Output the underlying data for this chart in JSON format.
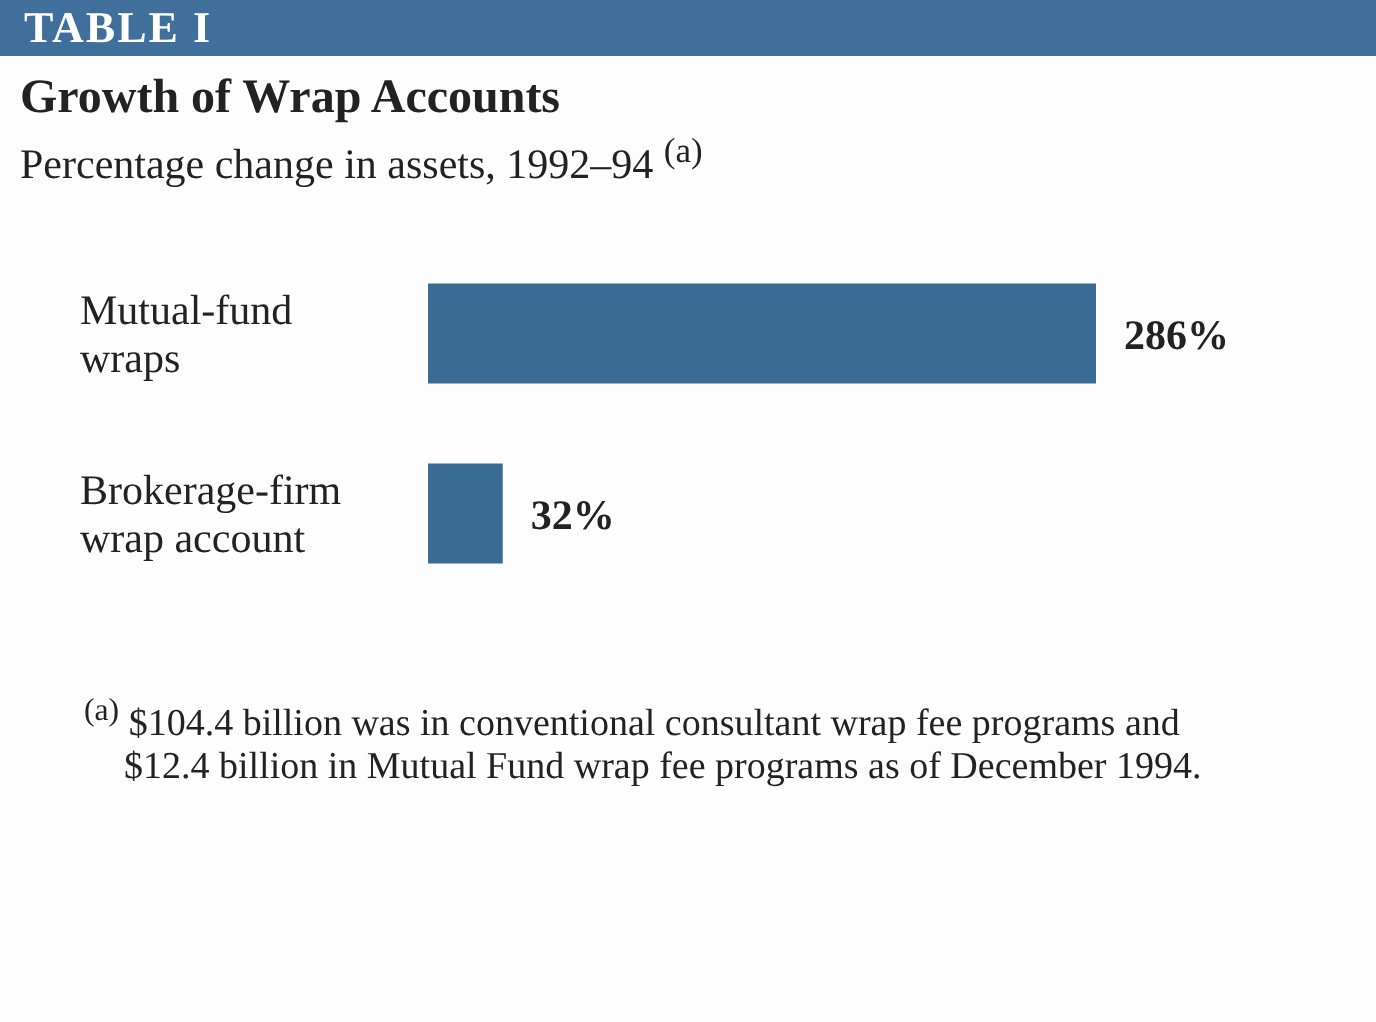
{
  "chart_data": {
    "type": "bar",
    "orientation": "horizontal",
    "title": "Growth of Wrap Accounts",
    "subtitle": "Percentage change in assets, 1992–94 $^{(a)}$",
    "categories": [
      "Mutual-fund wraps",
      "Brokerage-firm wrap account"
    ],
    "values": [
      286,
      32
    ],
    "color": "#3a6b94",
    "value_labels": [
      "286%",
      "32%"
    ],
    "annotations": [
      "TABLE I",
      "$^{(a)}$ $104.4 billion was in conventional consultant wrap fee programs and $12.4 billion in Mutual Fund wrap fee programs as of December 1994."
    ]
  }
}
